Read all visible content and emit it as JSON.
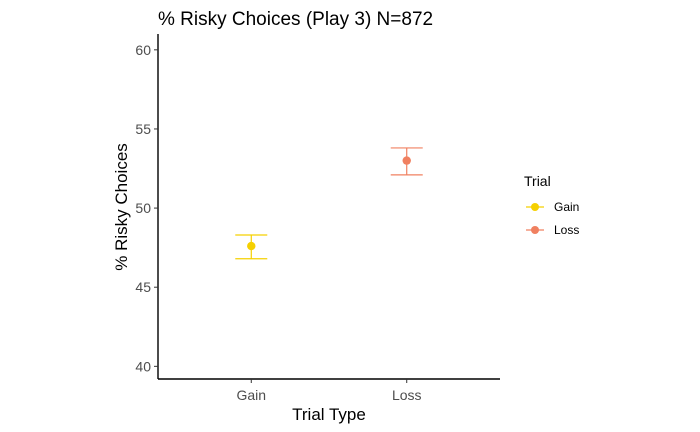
{
  "chart_data": {
    "type": "scatter",
    "title": "% Risky Choices (Play 3) N=872",
    "xlabel": "Trial Type",
    "ylabel": "% Risky Choices",
    "categories": [
      "Gain",
      "Loss"
    ],
    "ylim": [
      39.2,
      61
    ],
    "yticks": [
      40,
      45,
      50,
      55,
      60
    ],
    "grid": false,
    "legend_position": "right",
    "legend_title": "Trial",
    "series": [
      {
        "name": "Gain",
        "category": "Gain",
        "value": 47.6,
        "error_low": 46.8,
        "error_high": 48.3,
        "color": "#F5D000"
      },
      {
        "name": "Loss",
        "category": "Loss",
        "value": 53.0,
        "error_low": 52.1,
        "error_high": 53.8,
        "color": "#F08060"
      }
    ]
  }
}
